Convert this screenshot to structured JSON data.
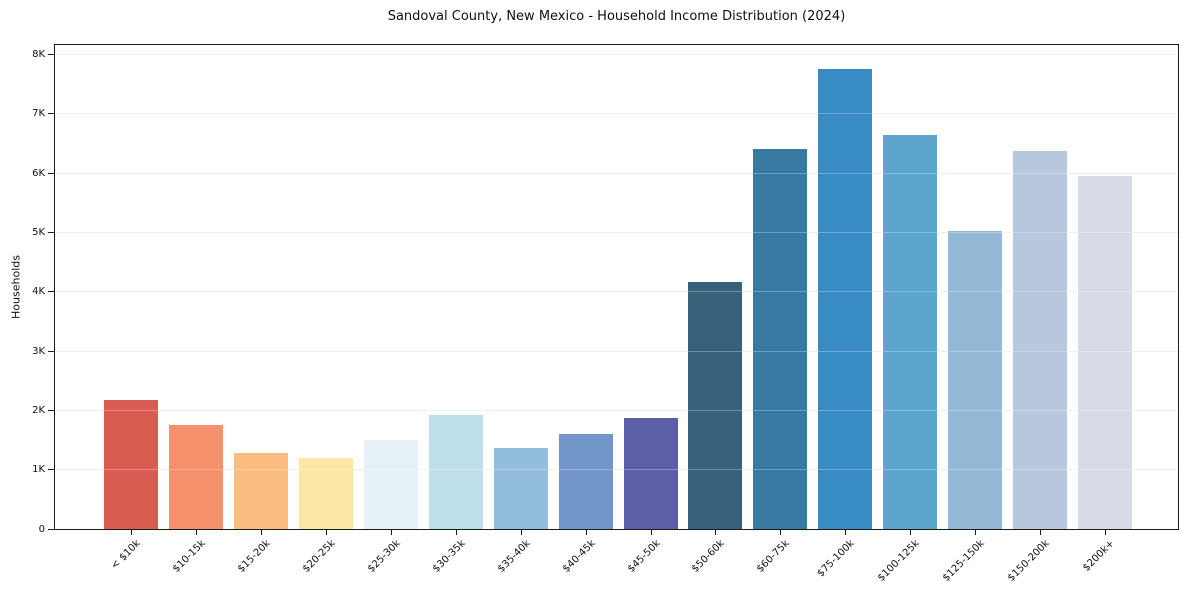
{
  "chart_data": {
    "type": "bar",
    "title": "Sandoval County, New Mexico - Household Income Distribution (2024)",
    "xlabel": "",
    "ylabel": "Households",
    "categories": [
      "< $10k",
      "$10-15k",
      "$15-20k",
      "$20-25k",
      "$25-30k",
      "$30-35k",
      "$35-40k",
      "$40-45k",
      "$45-50k",
      "$50-60k",
      "$60-75k",
      "$75-100k",
      "$100-125k",
      "$125-150k",
      "$150-200k",
      "$200k+"
    ],
    "values": [
      2180,
      1750,
      1290,
      1200,
      1500,
      1920,
      1370,
      1600,
      1880,
      4170,
      6410,
      7750,
      6650,
      5030,
      6380,
      5960
    ],
    "bar_colors": [
      "#d85c52",
      "#f4906b",
      "#fbbc80",
      "#fde7a6",
      "#e6f1f5",
      "#bfe0ea",
      "#92bddc",
      "#7296ca",
      "#5c5fa8",
      "#37607a",
      "#3879a1",
      "#368cc3",
      "#5ca6cb",
      "#93b9d7",
      "#b6c7de",
      "#d8dae8"
    ],
    "ylim": [
      0,
      8160
    ],
    "yticks": {
      "values": [
        0,
        1000,
        2000,
        3000,
        4000,
        5000,
        6000,
        7000,
        8000
      ],
      "labels": [
        "0",
        "1K",
        "2K",
        "3K",
        "4K",
        "5K",
        "6K",
        "7K",
        "8K"
      ]
    },
    "grid": "horizontal",
    "legend_visible": false
  }
}
